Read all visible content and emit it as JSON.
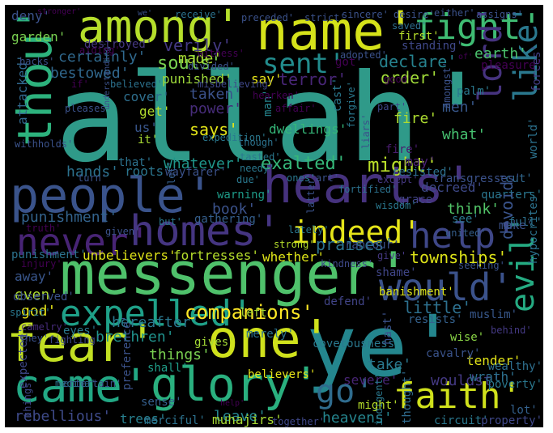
{
  "words": [
    {
      "text": "allah'",
      "color": "#2f9a89"
    },
    {
      "text": "ye'",
      "color": "#24868e"
    },
    {
      "text": "messenger'",
      "color": "#4fc16b"
    },
    {
      "text": "name'",
      "color": "#d5e21a"
    },
    {
      "text": "hearts'",
      "color": "#46327e"
    },
    {
      "text": "people'",
      "color": "#3a538b"
    },
    {
      "text": "fear'",
      "color": "#c2df23"
    },
    {
      "text": "one'",
      "color": "#cfe11c"
    },
    {
      "text": "glory'",
      "color": "#2ab07f"
    },
    {
      "text": "came'",
      "color": "#22a884"
    },
    {
      "text": "homes'",
      "color": "#453581"
    },
    {
      "text": "among'",
      "color": "#b5de2b"
    },
    {
      "text": "fight'",
      "color": "#3fbc73"
    },
    {
      "text": "thou'",
      "color": "#2db27d"
    },
    {
      "text": "would'",
      "color": "#3b528b"
    },
    {
      "text": "expelled'",
      "color": "#1fa088"
    },
    {
      "text": "faith'",
      "color": "#d0e11c"
    },
    {
      "text": "evil'",
      "color": "#25ab82"
    },
    {
      "text": "indeed'",
      "color": "#e5e419"
    },
    {
      "text": "help'",
      "color": "#3f4788"
    },
    {
      "text": "never'",
      "color": "#482475"
    },
    {
      "text": "lord'",
      "color": "#46337f"
    },
    {
      "text": "like'",
      "color": "#2a788e"
    },
    {
      "text": "sent'",
      "color": "#228c8d"
    },
    {
      "text": "go'",
      "color": "#2f6c8e"
    },
    {
      "text": "companions'",
      "color": "#fde725"
    },
    {
      "text": "exalted'",
      "color": "#35b779"
    },
    {
      "text": "might'",
      "color": "#b8de29"
    },
    {
      "text": "verily'",
      "color": "#443983"
    },
    {
      "text": "souls'",
      "color": "#7ad151"
    },
    {
      "text": "declare'",
      "color": "#26828e"
    },
    {
      "text": "terror'",
      "color": "#482677"
    },
    {
      "text": "order'",
      "color": "#a0da39"
    },
    {
      "text": "garden'",
      "color": "#7ad151"
    },
    {
      "text": "certainly'",
      "color": "#30698e"
    },
    {
      "text": "bestowed'",
      "color": "#31688e"
    },
    {
      "text": "punished'",
      "color": "#9fda3a"
    },
    {
      "text": "made'",
      "color": "#a8db34"
    },
    {
      "text": "earth'",
      "color": "#4ac16d"
    },
    {
      "text": "say'",
      "color": "#e7e419"
    },
    {
      "text": "taken'",
      "color": "#3b528b"
    },
    {
      "text": "power'",
      "color": "#472c7a"
    },
    {
      "text": "says'",
      "color": "#e2e418"
    },
    {
      "text": "men'",
      "color": "#38588c"
    },
    {
      "text": "fire'",
      "color": "#addc30"
    },
    {
      "text": "what'",
      "color": "#46c06f"
    },
    {
      "text": "dwellings'",
      "color": "#35b779"
    },
    {
      "text": "whatever'",
      "color": "#1f968b"
    },
    {
      "text": "hands'",
      "color": "#2c728e"
    },
    {
      "text": "roots'",
      "color": "#2b758e"
    },
    {
      "text": "think'",
      "color": "#52c569"
    },
    {
      "text": "decreed'",
      "color": "#3e4989"
    },
    {
      "text": "cut'",
      "color": "#31688e"
    },
    {
      "text": "quarters'",
      "color": "#2a768e"
    },
    {
      "text": "punishment'",
      "color": "#33638d"
    },
    {
      "text": "book'",
      "color": "#3b528b"
    },
    {
      "text": "praises'",
      "color": "#2c728e"
    },
    {
      "text": "townships'",
      "color": "#dde318"
    },
    {
      "text": "fortresses'",
      "color": "#b5de2b"
    },
    {
      "text": "unbelievers'",
      "color": "#dfe318"
    },
    {
      "text": "devoid'",
      "color": "#3a548c"
    },
    {
      "text": "full'",
      "color": "#2d708e"
    },
    {
      "text": "little'",
      "color": "#2d708e"
    },
    {
      "text": "god'",
      "color": "#e5e419"
    },
    {
      "text": "even'",
      "color": "#addc30"
    },
    {
      "text": "away'",
      "color": "#39568c"
    },
    {
      "text": "hereafter'",
      "color": "#2a788e"
    },
    {
      "text": "brethren'",
      "color": "#20928c"
    },
    {
      "text": "things'",
      "color": "#7ad151"
    },
    {
      "text": "take'",
      "color": "#2a788e"
    },
    {
      "text": "wouldst'",
      "color": "#443983"
    },
    {
      "text": "leave'",
      "color": "#25858e"
    },
    {
      "text": "rebellious'",
      "color": "#3e4a89"
    },
    {
      "text": "heavens'",
      "color": "#25858e"
    },
    {
      "text": "trees'",
      "color": "#277f8e"
    },
    {
      "text": "muslim'",
      "color": "#38588c"
    },
    {
      "text": "tender'",
      "color": "#e2e418"
    },
    {
      "text": "wrath'",
      "color": "#2d708e"
    },
    {
      "text": "severe'",
      "color": "#482575"
    },
    {
      "text": "believers'",
      "color": "#e7e419"
    },
    {
      "text": "shall'",
      "color": "#1f9e89"
    },
    {
      "text": "gives'",
      "color": "#a5db36"
    },
    {
      "text": "cavalry'",
      "color": "#3a538b"
    },
    {
      "text": "poverty'",
      "color": "#2a788e"
    },
    {
      "text": "wealthy'",
      "color": "#2e6f8e"
    },
    {
      "text": "wise'",
      "color": "#8bd646"
    },
    {
      "text": "resists'",
      "color": "#34618d"
    },
    {
      "text": "lot'",
      "color": "#34618d"
    },
    {
      "text": "circuit'",
      "color": "#2a788e"
    },
    {
      "text": "property'",
      "color": "#3f4889"
    },
    {
      "text": "merciful'",
      "color": "#2c728e"
    },
    {
      "text": "expected'",
      "color": "#3f4889"
    },
    {
      "text": "thought'",
      "color": "#2f6b8e"
    },
    {
      "text": "indigent'",
      "color": "#2a788e"
    },
    {
      "text": "whether'",
      "color": "#dde318"
    },
    {
      "text": "banishment'",
      "color": "#dde318"
    },
    {
      "text": "shame'",
      "color": "#404688"
    },
    {
      "text": "fighting'",
      "color": "#3e4989"
    },
    {
      "text": "entertain'",
      "color": "#3b528b"
    },
    {
      "text": "defend'",
      "color": "#414487"
    },
    {
      "text": "kindness'",
      "color": "#3f4889"
    },
    {
      "text": "rancour'",
      "color": "#3b528b"
    },
    {
      "text": "grace'",
      "color": "#414487"
    },
    {
      "text": "warning'",
      "color": "#1e9c89"
    },
    {
      "text": "gathering'",
      "color": "#355f8d"
    },
    {
      "text": "fire'",
      "color": "#481c6e"
    },
    {
      "text": "resisted'",
      "color": "#2d708e"
    },
    {
      "text": "may'",
      "color": "#482173"
    },
    {
      "text": "cover'",
      "color": "#2e6f8e"
    },
    {
      "text": "get'",
      "color": "#b2dd2d"
    },
    {
      "text": "us'",
      "color": "#39568c"
    },
    {
      "text": "attacked'",
      "color": "#31688e"
    },
    {
      "text": "deny'",
      "color": "#3b528b"
    },
    {
      "text": "destroyed'",
      "color": "#453882"
    },
    {
      "text": "first'",
      "color": "#b5de2b"
    },
    {
      "text": "standing'",
      "color": "#3f4889"
    },
    {
      "text": "saved'",
      "color": "#2e6e8e"
    },
    {
      "text": "got'",
      "color": "#440154"
    },
    {
      "text": "good'",
      "color": "#440154"
    },
    {
      "text": "forces'",
      "color": "#433e85"
    },
    {
      "text": "pleasure'",
      "color": "#440154"
    },
    {
      "text": "palm'",
      "color": "#2a788e"
    },
    {
      "text": "part'",
      "color": "#3f4788"
    },
    {
      "text": "forgive'",
      "color": "#2a788e"
    },
    {
      "text": "cast'",
      "color": "#2a788e"
    },
    {
      "text": "man'",
      "color": "#25858e"
    },
    {
      "text": "transgresses'",
      "color": "#3b528b"
    },
    {
      "text": "except'",
      "color": "#453882"
    },
    {
      "text": "fortified'",
      "color": "#2c728e"
    },
    {
      "text": "see'",
      "color": "#2a788e"
    },
    {
      "text": "make'",
      "color": "#3b528b"
    },
    {
      "text": "world'",
      "color": "#2c728e"
    },
    {
      "text": "hypocrites'",
      "color": "#2c728e"
    },
    {
      "text": "united'",
      "color": "#355f8d"
    },
    {
      "text": "wisdom'",
      "color": "#2a788e"
    },
    {
      "text": "latter'",
      "color": "#3b528b"
    },
    {
      "text": "lately'",
      "color": "#2a788e"
    },
    {
      "text": "strong'",
      "color": "#b5de2b"
    },
    {
      "text": "give'",
      "color": "#453882"
    },
    {
      "text": "seeking'",
      "color": "#3b528b"
    },
    {
      "text": "left'",
      "color": "#a8db34"
    },
    {
      "text": "merely'",
      "color": "#2c728e"
    },
    {
      "text": "covetousness'",
      "color": "#2a788e"
    },
    {
      "text": "hast'",
      "color": "#3b528b"
    },
    {
      "text": "behind'",
      "color": "#443983"
    },
    {
      "text": "muhajirs'",
      "color": "#a8db34"
    },
    {
      "text": "together'",
      "color": "#3f4889"
    },
    {
      "text": "might'",
      "color": "#b5de2b"
    },
    {
      "text": "sense'",
      "color": "#355f8d"
    },
    {
      "text": "preference'",
      "color": "#3b528b"
    },
    {
      "text": "medina'",
      "color": "#2c728e"
    },
    {
      "text": "things'",
      "color": "#3f4889"
    },
    {
      "text": "spirit'",
      "color": "#2a788e"
    },
    {
      "text": "observed'",
      "color": "#3b528b"
    },
    {
      "text": "injury'",
      "color": "#440154"
    },
    {
      "text": "punishment'",
      "color": "#2c728e"
    },
    {
      "text": "camelry'",
      "color": "#472c7a"
    },
    {
      "text": "eyes'",
      "color": "#2a788e"
    },
    {
      "text": "they'",
      "color": "#3b528b"
    },
    {
      "text": "given'",
      "color": "#3b528b"
    },
    {
      "text": "truth'",
      "color": "#440154"
    },
    {
      "text": "but'",
      "color": "#2a788e"
    },
    {
      "text": "let'",
      "color": "#355f8d"
    },
    {
      "text": "due'",
      "color": "#2a788e"
    },
    {
      "text": "needy'",
      "color": "#2a788e"
    },
    {
      "text": "tasted'",
      "color": "#2a788e"
    },
    {
      "text": "wayfarer'",
      "color": "#3b528b"
    },
    {
      "text": "expedition'",
      "color": "#2a788e"
    },
    {
      "text": "that'",
      "color": "#2c728e"
    },
    {
      "text": "turn'",
      "color": "#3b528b"
    },
    {
      "text": "withholds'",
      "color": "#3b528b"
    },
    {
      "text": "pleases'",
      "color": "#3b528b"
    },
    {
      "text": "it'",
      "color": "#a8db34"
    },
    {
      "text": "understanding'",
      "color": "#3b528b"
    },
    {
      "text": "believed'",
      "color": "#2c728e"
    },
    {
      "text": "if'",
      "color": "#440154"
    },
    {
      "text": "backs'",
      "color": "#3b528b"
    },
    {
      "text": "aiding'",
      "color": "#440154"
    },
    {
      "text": "divided'",
      "color": "#3b528b"
    },
    {
      "text": "misbelieving'",
      "color": "#3f4889"
    },
    {
      "text": "hearken'",
      "color": "#440154"
    },
    {
      "text": "affair'",
      "color": "#440154"
    },
    {
      "text": "though'",
      "color": "#2c728e"
    },
    {
      "text": "amongst'",
      "color": "#3b528b"
    },
    {
      "text": "liars'",
      "color": "#3b528b"
    },
    {
      "text": "ones'",
      "color": "#2a788e"
    },
    {
      "text": "art'",
      "color": "#3b528b"
    },
    {
      "text": "witness'",
      "color": "#440154"
    },
    {
      "text": "adopted'",
      "color": "#3b528b"
    },
    {
      "text": "receive'",
      "color": "#2c728e"
    },
    {
      "text": "preceded'",
      "color": "#3b528b"
    },
    {
      "text": "strict'",
      "color": "#3b528b"
    },
    {
      "text": "sincere'",
      "color": "#3b528b"
    },
    {
      "text": "desire'",
      "color": "#3b528b"
    },
    {
      "text": "either'",
      "color": "#3b528b"
    },
    {
      "text": "assigns'",
      "color": "#3b528b"
    },
    {
      "text": "stronger'",
      "color": "#440154"
    },
    {
      "text": "of'",
      "color": "#440154"
    },
    {
      "text": "help'",
      "color": "#440154"
    },
    {
      "text": "we'",
      "color": "#3b528b"
    }
  ]
}
